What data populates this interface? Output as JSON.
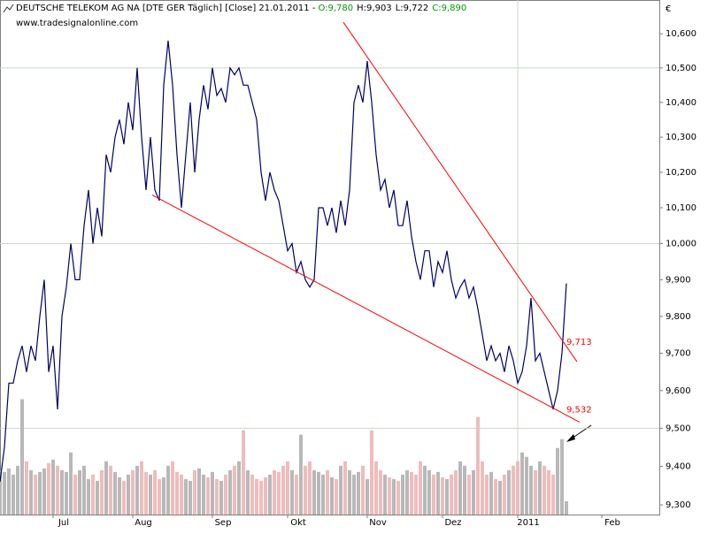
{
  "chart_data": {
    "type": "line",
    "title": "DEUTSCHE TELEKOM AG NA [DTE GER  Täglich] [Close] 21.01.2011 -",
    "quote": [
      {
        "text": "O:9,780",
        "color": "#009900"
      },
      {
        "text": "H:9,903",
        "color": "#000000"
      },
      {
        "text": "L:9,722",
        "color": "#000000"
      },
      {
        "text": "C:9,890",
        "color": "#009900"
      }
    ],
    "subtitle": "www.tradesignalonline.com",
    "unit": "€",
    "log_scale": true,
    "ylim": [
      9.275,
      10.7
    ],
    "yticks": [
      {
        "value": 9.3,
        "label": "9,300"
      },
      {
        "value": 9.4,
        "label": "9,400"
      },
      {
        "value": 9.5,
        "label": "9,500",
        "grid": true
      },
      {
        "value": 9.6,
        "label": "9,600"
      },
      {
        "value": 9.7,
        "label": "9,700"
      },
      {
        "value": 9.8,
        "label": "9,800"
      },
      {
        "value": 9.9,
        "label": "9,900"
      },
      {
        "value": 10.0,
        "label": "10,000",
        "grid": true
      },
      {
        "value": 10.1,
        "label": "10,100"
      },
      {
        "value": 10.2,
        "label": "10,200"
      },
      {
        "value": 10.3,
        "label": "10,300"
      },
      {
        "value": 10.4,
        "label": "10,400"
      },
      {
        "value": 10.5,
        "label": "10,500",
        "grid": true
      },
      {
        "value": 10.6,
        "label": "10,600"
      }
    ],
    "vgrid": [
      "2011"
    ],
    "categories": [
      null,
      null,
      null,
      null,
      null,
      null,
      null,
      null,
      null,
      null,
      null,
      null,
      "Jul",
      null,
      null,
      null,
      null,
      null,
      null,
      null,
      null,
      null,
      null,
      null,
      null,
      null,
      null,
      null,
      null,
      null,
      "Aug",
      null,
      null,
      null,
      null,
      null,
      null,
      null,
      null,
      null,
      null,
      null,
      null,
      null,
      null,
      null,
      null,
      null,
      "Sep",
      null,
      null,
      null,
      null,
      null,
      null,
      null,
      null,
      null,
      null,
      null,
      null,
      null,
      null,
      null,
      null,
      "Okt",
      null,
      null,
      null,
      null,
      null,
      null,
      null,
      null,
      null,
      null,
      null,
      null,
      null,
      null,
      null,
      null,
      null,
      "Nov",
      null,
      null,
      null,
      null,
      null,
      null,
      null,
      null,
      null,
      null,
      null,
      null,
      null,
      null,
      null,
      null,
      "Dez",
      null,
      null,
      null,
      null,
      null,
      null,
      null,
      null,
      null,
      null,
      null,
      null,
      null,
      null,
      null,
      null,
      "2011",
      null,
      null,
      null,
      null,
      null,
      null,
      null,
      null,
      null,
      null,
      null,
      null,
      null,
      null,
      null,
      null,
      null,
      null,
      "Feb",
      null,
      null,
      null,
      null,
      null,
      null,
      null,
      null,
      null,
      null,
      null,
      null
    ],
    "series": [
      {
        "color": "#000066",
        "values": [
          9.36,
          9.45,
          9.62,
          9.62,
          9.68,
          9.72,
          9.65,
          9.72,
          9.68,
          9.8,
          9.9,
          9.65,
          9.72,
          9.55,
          9.8,
          9.88,
          10.0,
          9.9,
          9.9,
          10.05,
          10.15,
          10.0,
          10.1,
          10.02,
          10.25,
          10.2,
          10.3,
          10.35,
          10.28,
          10.4,
          10.32,
          10.5,
          10.3,
          10.15,
          10.3,
          10.15,
          10.12,
          10.45,
          10.58,
          10.45,
          10.25,
          10.1,
          10.25,
          10.4,
          10.2,
          10.35,
          10.45,
          10.38,
          10.5,
          10.42,
          10.44,
          10.4,
          10.5,
          10.48,
          10.5,
          10.45,
          10.45,
          10.4,
          10.35,
          10.2,
          10.12,
          10.2,
          10.15,
          10.12,
          10.05,
          9.98,
          10.0,
          9.92,
          9.95,
          9.9,
          9.88,
          9.9,
          10.1,
          10.1,
          10.05,
          10.1,
          10.03,
          10.12,
          10.05,
          10.15,
          10.4,
          10.45,
          10.4,
          10.52,
          10.4,
          10.25,
          10.15,
          10.18,
          10.1,
          10.15,
          10.05,
          10.05,
          10.12,
          10.02,
          9.95,
          9.9,
          9.98,
          9.98,
          9.88,
          9.95,
          9.92,
          9.98,
          9.9,
          9.85,
          9.88,
          9.9,
          9.85,
          9.88,
          9.82,
          9.75,
          9.68,
          9.72,
          9.68,
          9.7,
          9.65,
          9.72,
          9.68,
          9.62,
          9.65,
          9.72,
          9.85,
          9.68,
          9.7,
          9.65,
          9.6,
          9.55,
          9.6,
          9.7,
          9.89,
          null,
          null,
          null,
          null,
          null,
          null,
          null,
          null,
          null,
          null,
          null,
          null,
          null,
          null,
          null,
          null,
          null,
          null,
          null,
          null
        ]
      },
      {
        "type": "bar",
        "axis": "y2",
        "up_color": "#b8b8b8",
        "down_color": "#efbcbc",
        "values": [
          50,
          48,
          52,
          45,
          55,
          130,
          60,
          50,
          45,
          48,
          52,
          58,
          62,
          55,
          50,
          48,
          70,
          45,
          50,
          55,
          40,
          45,
          38,
          50,
          60,
          55,
          48,
          42,
          38,
          45,
          50,
          55,
          60,
          48,
          45,
          50,
          40,
          42,
          55,
          60,
          48,
          45,
          40,
          38,
          50,
          52,
          45,
          42,
          48,
          40,
          38,
          45,
          50,
          55,
          60,
          95,
          50,
          45,
          40,
          38,
          42,
          45,
          50,
          48,
          55,
          60,
          50,
          45,
          90,
          55,
          60,
          50,
          48,
          45,
          50,
          42,
          40,
          55,
          60,
          50,
          45,
          48,
          55,
          40,
          95,
          60,
          50,
          45,
          42,
          40,
          38,
          45,
          50,
          48,
          45,
          60,
          55,
          50,
          45,
          48,
          42,
          40,
          45,
          50,
          60,
          55,
          45,
          50,
          110,
          60,
          45,
          48,
          40,
          38,
          45,
          50,
          55,
          60,
          70,
          65,
          55,
          50,
          60,
          55,
          50,
          45,
          75,
          85,
          15,
          null,
          null,
          null,
          null,
          null,
          null,
          null,
          null,
          null,
          null,
          null,
          null,
          null,
          null,
          null,
          null,
          null,
          null,
          null,
          null
        ]
      }
    ],
    "y2lim": [
      0,
      580
    ],
    "trendlines": [
      {
        "color": "#ff0000",
        "x": [
          34.4,
          131
        ],
        "y": [
          10.136,
          9.516
        ]
      },
      {
        "color": "#ff0000",
        "x": [
          77.6,
          130.4
        ],
        "y": [
          10.634,
          9.677
        ]
      }
    ],
    "annotations": [
      {
        "value": 9.713,
        "label": "9,713",
        "color": "#ff0000"
      },
      {
        "value": 9.532,
        "label": "9,532",
        "color": "#ff0000"
      }
    ]
  }
}
